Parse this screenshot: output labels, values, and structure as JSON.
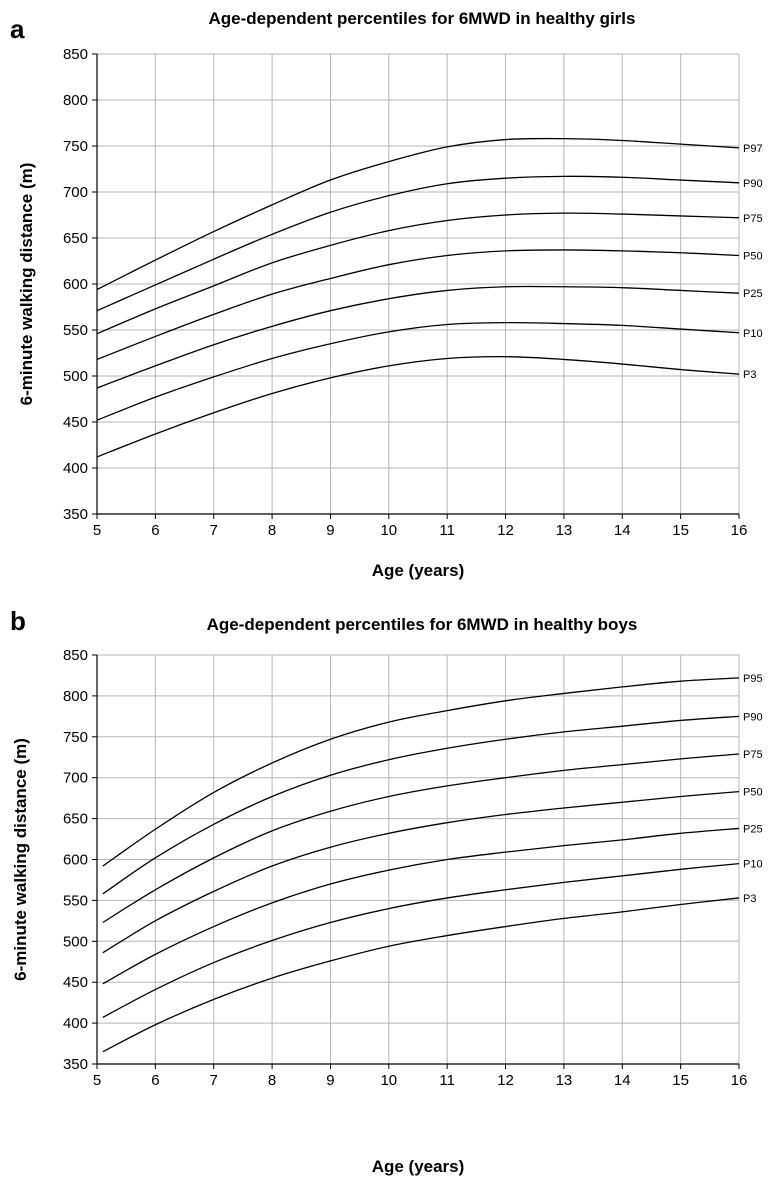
{
  "chart_data": [
    {
      "type": "line",
      "panel_label": "a",
      "title": "Age-dependent percentiles for 6MWD in healthy girls",
      "xlabel": "Age (years)",
      "ylabel": "6-minute walking distance (m)",
      "xlim": [
        5,
        16
      ],
      "ylim": [
        350,
        850
      ],
      "xticks": [
        5,
        6,
        7,
        8,
        9,
        10,
        11,
        12,
        13,
        14,
        15,
        16
      ],
      "yticks": [
        350,
        400,
        450,
        500,
        550,
        600,
        650,
        700,
        750,
        800,
        850
      ],
      "grid": true,
      "x": [
        5,
        6,
        7,
        8,
        9,
        10,
        11,
        12,
        13,
        14,
        15,
        16
      ],
      "series": [
        {
          "name": "P97",
          "values": [
            594,
            626,
            657,
            686,
            713,
            733,
            749,
            757,
            758,
            756,
            752,
            748
          ]
        },
        {
          "name": "P90",
          "values": [
            571,
            599,
            627,
            654,
            678,
            696,
            709,
            715,
            717,
            716,
            713,
            710
          ]
        },
        {
          "name": "P75",
          "values": [
            546,
            573,
            598,
            623,
            642,
            658,
            669,
            675,
            677,
            676,
            674,
            672
          ]
        },
        {
          "name": "P50",
          "values": [
            518,
            543,
            567,
            589,
            606,
            621,
            631,
            636,
            637,
            636,
            634,
            631
          ]
        },
        {
          "name": "P25",
          "values": [
            487,
            511,
            534,
            554,
            571,
            584,
            593,
            597,
            597,
            596,
            593,
            590
          ]
        },
        {
          "name": "P10",
          "values": [
            452,
            477,
            499,
            519,
            535,
            548,
            556,
            558,
            557,
            555,
            551,
            547
          ]
        },
        {
          "name": "P3",
          "values": [
            412,
            437,
            460,
            481,
            498,
            511,
            519,
            521,
            518,
            513,
            507,
            502
          ]
        }
      ]
    },
    {
      "type": "line",
      "panel_label": "b",
      "title": "Age-dependent percentiles for 6MWD in healthy boys",
      "xlabel": "Age (years)",
      "ylabel": "6-minute walking distance (m)",
      "xlim": [
        5,
        16
      ],
      "ylim": [
        350,
        850
      ],
      "xticks": [
        5,
        6,
        7,
        8,
        9,
        10,
        11,
        12,
        13,
        14,
        15,
        16
      ],
      "yticks": [
        350,
        400,
        450,
        500,
        550,
        600,
        650,
        700,
        750,
        800,
        850
      ],
      "grid": true,
      "x": [
        5.1,
        6,
        7,
        8,
        9,
        10,
        11,
        12,
        13,
        14,
        15,
        16
      ],
      "series": [
        {
          "name": "P95",
          "values": [
            592,
            637,
            682,
            718,
            747,
            768,
            782,
            794,
            803,
            811,
            818,
            822
          ]
        },
        {
          "name": "P90",
          "values": [
            558,
            602,
            643,
            677,
            703,
            722,
            736,
            747,
            756,
            763,
            770,
            775
          ]
        },
        {
          "name": "P75",
          "values": [
            523,
            563,
            602,
            635,
            659,
            677,
            690,
            700,
            709,
            716,
            723,
            729
          ]
        },
        {
          "name": "P50",
          "values": [
            486,
            525,
            561,
            592,
            615,
            632,
            645,
            655,
            663,
            670,
            677,
            683
          ]
        },
        {
          "name": "P25",
          "values": [
            448,
            484,
            518,
            547,
            570,
            587,
            600,
            609,
            617,
            624,
            632,
            638
          ]
        },
        {
          "name": "P10",
          "values": [
            407,
            441,
            474,
            501,
            523,
            540,
            553,
            563,
            572,
            580,
            588,
            595
          ]
        },
        {
          "name": "P3",
          "values": [
            365,
            398,
            429,
            455,
            476,
            494,
            507,
            518,
            528,
            536,
            545,
            553
          ]
        }
      ]
    }
  ]
}
